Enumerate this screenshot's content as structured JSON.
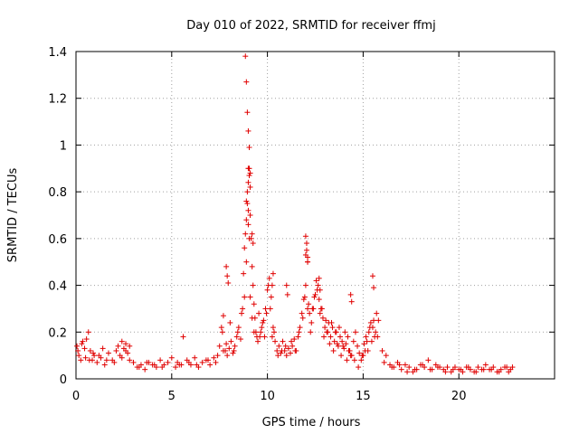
{
  "chart_data": {
    "type": "scatter",
    "title": "Day 010 of 2022, SRMTID for receiver ffmj",
    "xlabel": "GPS time / hours",
    "ylabel": "SRMTID / TECUs",
    "xlim": [
      0,
      25
    ],
    "ylim": [
      0,
      1.4
    ],
    "xticks": [
      0,
      5,
      10,
      15,
      20
    ],
    "xtick_labels": [
      "0",
      "5",
      "10",
      "15",
      "20"
    ],
    "yticks": [
      0,
      0.2,
      0.4,
      0.6,
      0.8,
      1.0,
      1.2,
      1.4
    ],
    "ytick_labels": [
      "0",
      "0.2",
      "0.4",
      "0.6",
      "0.8",
      "1",
      "1.2",
      "1.4"
    ],
    "grid": true,
    "marker": "+",
    "color": "#e00000",
    "series": [
      {
        "name": "SRMTID",
        "x": [
          0.05,
          0.15,
          0.25,
          0.35,
          0.45,
          0.55,
          0.65,
          0.75,
          0.85,
          0.95,
          1.1,
          1.3,
          1.5,
          1.7,
          1.9,
          2.1,
          2.2,
          2.3,
          2.4,
          2.5,
          2.6,
          2.7,
          2.8,
          3.0,
          3.2,
          3.4,
          3.6,
          3.8,
          4.0,
          4.2,
          4.4,
          4.6,
          4.8,
          5.0,
          5.2,
          5.3,
          5.4,
          5.6,
          5.8,
          6.0,
          6.2,
          6.4,
          6.6,
          6.8,
          7.0,
          7.2,
          7.4,
          7.5,
          7.6,
          7.7,
          7.8,
          7.9,
          8.0,
          8.1,
          8.2,
          8.3,
          8.4,
          8.5,
          8.6,
          8.7,
          8.75,
          8.8,
          8.85,
          8.9,
          8.95,
          9.0,
          9.05,
          9.1,
          9.15,
          9.2,
          9.25,
          9.3,
          9.35,
          9.4,
          9.5,
          9.6,
          9.7,
          9.8,
          9.9,
          10.0,
          10.1,
          10.2,
          10.3,
          10.4,
          10.5,
          10.6,
          10.7,
          10.8,
          10.9,
          11.0,
          11.1,
          11.2,
          11.3,
          11.4,
          11.5,
          11.6,
          11.7,
          11.8,
          11.9,
          12.0,
          12.05,
          12.1,
          12.15,
          12.2,
          12.3,
          12.4,
          12.5,
          12.6,
          12.7,
          12.8,
          12.9,
          13.0,
          13.1,
          13.2,
          13.3,
          13.4,
          13.5,
          13.6,
          13.7,
          13.8,
          13.9,
          14.0,
          14.1,
          14.2,
          14.3,
          14.4,
          14.5,
          14.6,
          14.7,
          14.8,
          14.9,
          15.0,
          15.1,
          15.2,
          15.3,
          15.4,
          15.5,
          15.6,
          15.7,
          15.8,
          16.0,
          16.2,
          16.4,
          16.6,
          16.8,
          17.0,
          17.2,
          17.4,
          17.6,
          17.8,
          18.0,
          18.2,
          18.4,
          18.6,
          18.8,
          19.0,
          19.2,
          19.4,
          19.6,
          19.8,
          20.0,
          20.2,
          20.4,
          20.6,
          20.8,
          21.0,
          21.2,
          21.4,
          21.6,
          21.8,
          22.0,
          22.2,
          22.4,
          22.6,
          22.8,
          0.1,
          0.3,
          0.5,
          0.7,
          0.9,
          1.2,
          1.4,
          1.6,
          2.0,
          2.4,
          2.6,
          2.8,
          3.3,
          3.7,
          4.1,
          4.5,
          5.5,
          5.9,
          6.3,
          6.9,
          7.3,
          7.7,
          7.65,
          7.85,
          8.05,
          8.25,
          8.45,
          8.65,
          8.8,
          8.9,
          9.0,
          9.1,
          9.2,
          9.3,
          9.45,
          9.55,
          9.65,
          9.75,
          9.85,
          9.95,
          10.05,
          10.15,
          10.25,
          10.35,
          10.55,
          10.75,
          10.95,
          11.25,
          11.45,
          11.65,
          11.85,
          11.95,
          12.1,
          12.25,
          12.35,
          12.45,
          12.55,
          12.65,
          12.75,
          12.85,
          12.95,
          13.05,
          13.15,
          13.25,
          13.35,
          13.45,
          13.55,
          13.65,
          13.75,
          13.85,
          13.95,
          14.05,
          14.15,
          14.25,
          14.35,
          14.55,
          14.75,
          14.95,
          15.05,
          15.15,
          15.25,
          15.35,
          15.45,
          15.55,
          15.65,
          15.75,
          16.1,
          16.5,
          16.9,
          17.3,
          17.7,
          18.1,
          18.5,
          18.9,
          19.3,
          19.7,
          20.1,
          20.5,
          20.9,
          21.3,
          21.7,
          22.1,
          22.5,
          22.7,
          8.85,
          8.9,
          8.95,
          9.0,
          9.05,
          9.1,
          9.05,
          9.0,
          8.95,
          8.9,
          9.0,
          9.05,
          9.1,
          12.0,
          12.05,
          12.1,
          12.0,
          12.1,
          15.5,
          15.55,
          12.7,
          12.75,
          14.35,
          14.4,
          10.3,
          10.25,
          11.0,
          11.05,
          7.85,
          7.9,
          7.95,
          9.2,
          9.25
        ],
        "y": [
          0.14,
          0.1,
          0.08,
          0.16,
          0.13,
          0.17,
          0.2,
          0.12,
          0.08,
          0.1,
          0.07,
          0.09,
          0.06,
          0.11,
          0.08,
          0.12,
          0.14,
          0.1,
          0.16,
          0.13,
          0.15,
          0.11,
          0.08,
          0.07,
          0.05,
          0.06,
          0.04,
          0.07,
          0.06,
          0.05,
          0.08,
          0.06,
          0.07,
          0.09,
          0.05,
          0.07,
          0.06,
          0.18,
          0.08,
          0.06,
          0.09,
          0.05,
          0.07,
          0.08,
          0.06,
          0.09,
          0.1,
          0.14,
          0.22,
          0.27,
          0.12,
          0.1,
          0.13,
          0.16,
          0.11,
          0.14,
          0.18,
          0.22,
          0.17,
          0.3,
          0.45,
          0.56,
          0.62,
          0.68,
          0.75,
          0.9,
          0.87,
          0.82,
          0.6,
          0.48,
          0.4,
          0.32,
          0.26,
          0.2,
          0.16,
          0.18,
          0.22,
          0.25,
          0.3,
          0.38,
          0.43,
          0.35,
          0.22,
          0.16,
          0.12,
          0.14,
          0.11,
          0.16,
          0.12,
          0.1,
          0.13,
          0.11,
          0.14,
          0.17,
          0.12,
          0.18,
          0.22,
          0.28,
          0.34,
          0.4,
          0.55,
          0.5,
          0.32,
          0.28,
          0.24,
          0.3,
          0.36,
          0.38,
          0.34,
          0.3,
          0.26,
          0.22,
          0.2,
          0.24,
          0.18,
          0.22,
          0.16,
          0.2,
          0.14,
          0.18,
          0.16,
          0.13,
          0.15,
          0.18,
          0.12,
          0.1,
          0.16,
          0.2,
          0.14,
          0.11,
          0.08,
          0.1,
          0.12,
          0.16,
          0.2,
          0.24,
          0.22,
          0.18,
          0.28,
          0.25,
          0.12,
          0.1,
          0.06,
          0.05,
          0.07,
          0.04,
          0.06,
          0.05,
          0.03,
          0.04,
          0.06,
          0.05,
          0.08,
          0.04,
          0.06,
          0.05,
          0.04,
          0.05,
          0.03,
          0.05,
          0.04,
          0.03,
          0.05,
          0.04,
          0.03,
          0.05,
          0.04,
          0.06,
          0.04,
          0.05,
          0.03,
          0.04,
          0.05,
          0.03,
          0.05,
          0.12,
          0.15,
          0.09,
          0.08,
          0.11,
          0.1,
          0.13,
          0.08,
          0.07,
          0.09,
          0.12,
          0.14,
          0.05,
          0.07,
          0.06,
          0.05,
          0.06,
          0.07,
          0.06,
          0.08,
          0.07,
          0.12,
          0.2,
          0.15,
          0.24,
          0.12,
          0.2,
          0.28,
          0.35,
          0.5,
          0.72,
          0.35,
          0.26,
          0.2,
          0.18,
          0.28,
          0.2,
          0.24,
          0.18,
          0.28,
          0.4,
          0.3,
          0.18,
          0.2,
          0.1,
          0.12,
          0.14,
          0.16,
          0.12,
          0.2,
          0.26,
          0.35,
          0.3,
          0.2,
          0.3,
          0.35,
          0.42,
          0.4,
          0.28,
          0.3,
          0.18,
          0.25,
          0.2,
          0.15,
          0.24,
          0.12,
          0.2,
          0.15,
          0.22,
          0.1,
          0.14,
          0.2,
          0.08,
          0.12,
          0.1,
          0.08,
          0.05,
          0.1,
          0.15,
          0.18,
          0.12,
          0.22,
          0.16,
          0.25,
          0.2,
          0.18,
          0.07,
          0.05,
          0.06,
          0.03,
          0.04,
          0.06,
          0.04,
          0.05,
          0.03,
          0.04,
          0.04,
          0.05,
          0.03,
          0.04,
          0.04,
          0.03,
          0.05,
          0.04,
          1.38,
          1.27,
          1.14,
          1.06,
          0.99,
          0.88,
          0.9,
          0.84,
          0.8,
          0.76,
          0.66,
          0.6,
          0.7,
          0.61,
          0.58,
          0.52,
          0.53,
          0.5,
          0.44,
          0.39,
          0.43,
          0.38,
          0.36,
          0.33,
          0.45,
          0.4,
          0.4,
          0.36,
          0.48,
          0.44,
          0.41,
          0.62,
          0.58
        ]
      }
    ]
  }
}
